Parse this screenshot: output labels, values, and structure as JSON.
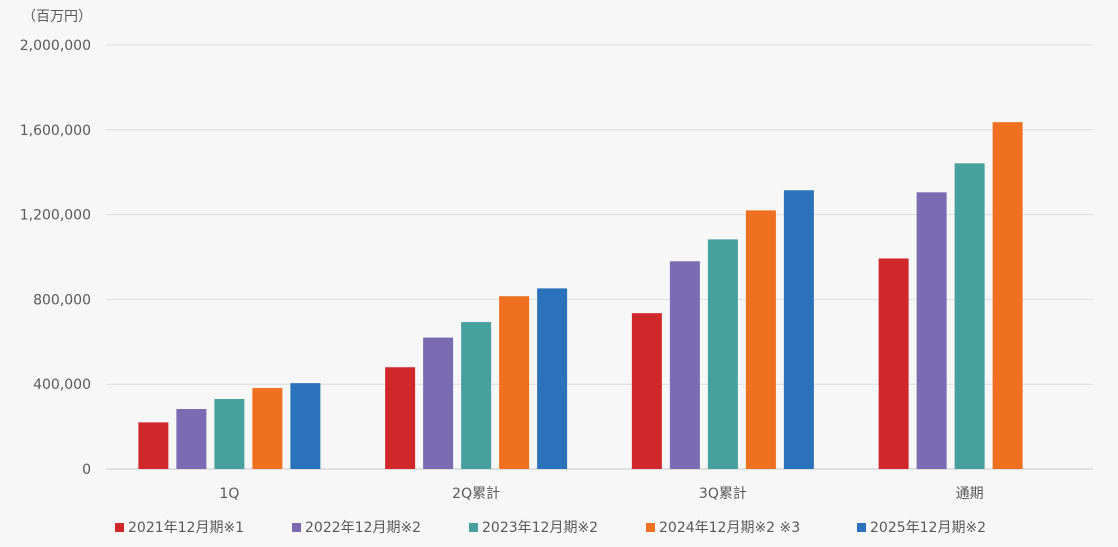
{
  "chart_data": {
    "type": "bar",
    "unit_label": "（百万円）",
    "categories": [
      "1Q",
      "2Q累計",
      "3Q累計",
      "通期"
    ],
    "series": [
      {
        "name": "2021年12月期※1",
        "color": "#d0282a",
        "values": [
          220000,
          480000,
          735000,
          993000
        ]
      },
      {
        "name": "2022年12月期※2",
        "color": "#7b6bb3",
        "values": [
          283000,
          620000,
          980000,
          1305000
        ]
      },
      {
        "name": "2023年12月期※2",
        "color": "#45a09e",
        "values": [
          330000,
          693000,
          1083000,
          1442000
        ]
      },
      {
        "name": "2024年12月期※2 ※3",
        "color": "#ee7020",
        "values": [
          382000,
          815000,
          1220000,
          1636000
        ]
      },
      {
        "name": "2025年12月期※2",
        "color": "#2a72bb",
        "values": [
          405000,
          852000,
          1315000,
          null
        ]
      }
    ],
    "ylim": [
      0,
      2000000
    ],
    "yticks": [
      0,
      400000,
      800000,
      1200000,
      1600000,
      2000000
    ],
    "ytick_labels": [
      "0",
      "400,000",
      "800,000",
      "1,200,000",
      "1,600,000",
      "2,000,000"
    ],
    "grid": true,
    "legend_position": "bottom"
  }
}
